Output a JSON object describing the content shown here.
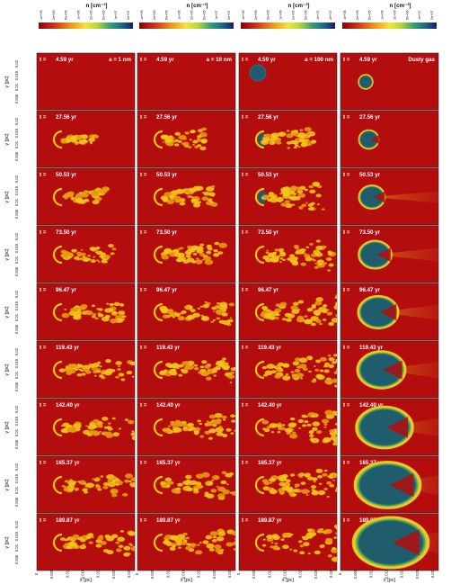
{
  "colorbar_title": "n [cm⁻³]",
  "colorbar_titles": [
    "n [cm⁻³]",
    "n [cm⁻³]",
    "n [cm⁻³]",
    "n [cm⁻³]"
  ],
  "colorbar_ticks": [
    "1e+05",
    "2e+05",
    "5e+05",
    "1e+06",
    "2e+06",
    "5e+06",
    "1e+07",
    "2e+07"
  ],
  "column_labels": [
    "a = 1 nm",
    "a = 10 nm",
    "a = 100 nm",
    "Dusty gas"
  ],
  "time_prefix": "t =",
  "times": [
    "4.59 yr",
    "27.56 yr",
    "50.53 yr",
    "73.50 yr",
    "96.47 yr",
    "119.43 yr",
    "142.40 yr",
    "165.37 yr",
    "189.87 yr"
  ],
  "y_axis_label": "y [pc]",
  "y_tick_labels": [
    "0.02",
    "0.015",
    "0.01",
    "0.005"
  ],
  "x_axis_label": "x [pc]",
  "x_tick_labels": [
    "0",
    "0.005",
    "0.01",
    "0.015",
    "0.02",
    "0.025",
    "0.03"
  ],
  "colors": {
    "background_red": "#b40d0d",
    "cloud_blue": "#1e5b6e",
    "shock_yellow": "#f2c41a",
    "tail_orange": "#e59a0f",
    "colorbar_navy": "#1a1a6e"
  }
}
